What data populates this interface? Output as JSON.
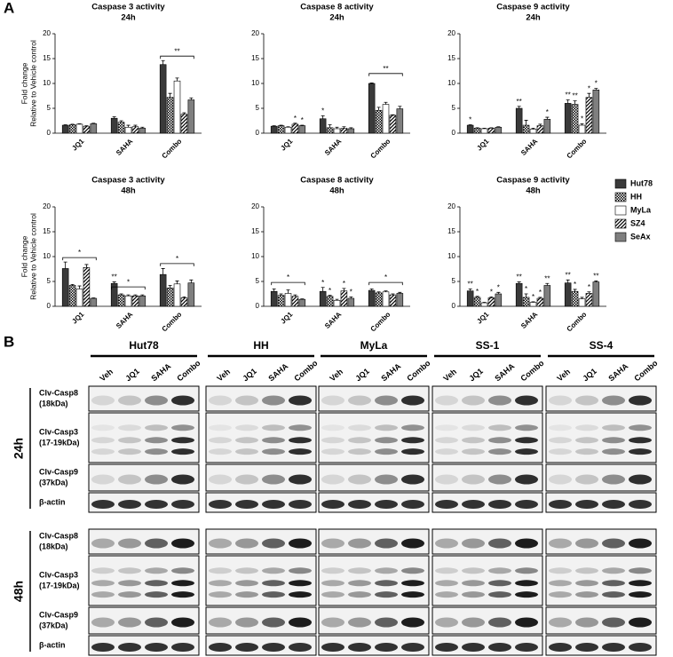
{
  "panel_labels": [
    "A",
    "B"
  ],
  "chart_data": [
    {
      "type": "bar",
      "title": "Caspase 3 activity",
      "subtitle": "24h",
      "ylabel": "Fold change",
      "ylabel2": "Relative to Vehicle control",
      "categories": [
        "JQ1",
        "SAHA",
        "Combo"
      ],
      "ylim": [
        0,
        20
      ],
      "yticks": [
        0,
        5,
        10,
        15,
        20
      ],
      "legend": "right",
      "series": [
        {
          "name": "Hut78",
          "color": "#3a3a3a",
          "values": [
            1.6,
            3.0,
            13.8
          ],
          "errors": [
            0.1,
            0.3,
            0.8
          ]
        },
        {
          "name": "HH",
          "color": "#000000",
          "pattern": "checker",
          "values": [
            1.7,
            2.2,
            7.2
          ],
          "errors": [
            0.1,
            0.3,
            0.8
          ]
        },
        {
          "name": "MyLa",
          "color": "#ffffff",
          "values": [
            1.8,
            1.2,
            10.5
          ],
          "errors": [
            0.1,
            0.4,
            0.6
          ]
        },
        {
          "name": "SZ4",
          "color": "#000000",
          "pattern": "stripes",
          "values": [
            1.4,
            1.3,
            3.8
          ],
          "errors": [
            0.1,
            0.3,
            0.3
          ]
        },
        {
          "name": "SeAx",
          "color": "#7f7f7f",
          "values": [
            1.9,
            1.0,
            6.7
          ],
          "errors": [
            0.1,
            0.2,
            0.4
          ]
        }
      ],
      "brackets": [
        {
          "category": 2,
          "label": "**",
          "y": 15.5
        }
      ]
    },
    {
      "type": "bar",
      "title": "Caspase 8 activity",
      "subtitle": "24h",
      "categories": [
        "JQ1",
        "SAHA",
        "Combo"
      ],
      "ylim": [
        0,
        20
      ],
      "yticks": [
        0,
        5,
        10,
        15,
        20
      ],
      "series": [
        {
          "name": "Hut78",
          "color": "#3a3a3a",
          "values": [
            1.4,
            2.9,
            10.0
          ],
          "errors": [
            0.1,
            0.6,
            0.1
          ],
          "stars": [
            null,
            "*",
            null
          ]
        },
        {
          "name": "HH",
          "color": "#000000",
          "pattern": "checker",
          "values": [
            1.5,
            1.1,
            4.6
          ],
          "errors": [
            0.1,
            0.6,
            0.6
          ]
        },
        {
          "name": "MyLa",
          "color": "#ffffff",
          "values": [
            1.2,
            0.9,
            5.8
          ],
          "errors": [
            0.1,
            0.3,
            0.4
          ]
        },
        {
          "name": "SZ4",
          "color": "#000000",
          "pattern": "stripes",
          "values": [
            1.8,
            1.0,
            3.6
          ],
          "errors": [
            0.2,
            0.3,
            0.1
          ],
          "stars": [
            "*",
            null,
            null
          ]
        },
        {
          "name": "SeAx",
          "color": "#7f7f7f",
          "values": [
            1.5,
            0.9,
            4.9
          ],
          "errors": [
            0.1,
            0.2,
            0.5
          ],
          "stars": [
            "*",
            null,
            null
          ]
        }
      ],
      "brackets": [
        {
          "category": 2,
          "label": "**",
          "y": 12
        }
      ]
    },
    {
      "type": "bar",
      "title": "Caspase 9 activity",
      "subtitle": "24h",
      "categories": [
        "JQ1",
        "SAHA",
        "Combo"
      ],
      "ylim": [
        0,
        20
      ],
      "yticks": [
        0,
        5,
        10,
        15,
        20
      ],
      "series": [
        {
          "name": "Hut78",
          "color": "#3a3a3a",
          "values": [
            1.6,
            5.0,
            6.0
          ],
          "errors": [
            0.1,
            0.4,
            0.7
          ],
          "stars": [
            "*",
            "**",
            "**"
          ]
        },
        {
          "name": "HH",
          "color": "#000000",
          "pattern": "checker",
          "values": [
            1.0,
            1.6,
            5.8
          ],
          "errors": [
            0.1,
            1.0,
            0.7
          ],
          "stars": [
            null,
            null,
            "**"
          ]
        },
        {
          "name": "MyLa",
          "color": "#ffffff",
          "values": [
            0.9,
            0.8,
            1.6
          ],
          "errors": [
            0.1,
            0.2,
            0.3
          ],
          "stars": [
            null,
            null,
            "*"
          ]
        },
        {
          "name": "SZ4",
          "color": "#000000",
          "pattern": "stripes",
          "values": [
            1.0,
            1.5,
            7.2
          ],
          "errors": [
            0.1,
            0.3,
            0.8
          ],
          "stars": [
            null,
            null,
            "*"
          ]
        },
        {
          "name": "SeAx",
          "color": "#7f7f7f",
          "values": [
            1.2,
            2.8,
            8.7
          ],
          "errors": [
            0.1,
            0.4,
            0.3
          ],
          "stars": [
            null,
            "*",
            "*"
          ]
        }
      ]
    },
    {
      "type": "bar",
      "title": "Caspase 3 activity",
      "subtitle": "48h",
      "ylabel": "Fold change",
      "ylabel2": "Relative to Vehicle control",
      "categories": [
        "JQ1",
        "SAHA",
        "Combo"
      ],
      "ylim": [
        0,
        20
      ],
      "yticks": [
        0,
        5,
        10,
        15,
        20
      ],
      "series": [
        {
          "name": "Hut78",
          "color": "#3a3a3a",
          "values": [
            7.6,
            4.6,
            6.4
          ],
          "errors": [
            1.3,
            0.3,
            1.2
          ],
          "stars": [
            null,
            "**",
            null
          ]
        },
        {
          "name": "HH",
          "color": "#000000",
          "pattern": "checker",
          "values": [
            4.2,
            2.3,
            3.7
          ],
          "errors": [
            0.2,
            0.2,
            0.5
          ]
        },
        {
          "name": "MyLa",
          "color": "#ffffff",
          "values": [
            3.5,
            2.1,
            4.5
          ],
          "errors": [
            0.6,
            0.2,
            0.6
          ]
        },
        {
          "name": "SZ4",
          "color": "#000000",
          "pattern": "stripes",
          "values": [
            7.8,
            2.1,
            1.7
          ],
          "errors": [
            0.6,
            0.2,
            0.2
          ]
        },
        {
          "name": "SeAx",
          "color": "#7f7f7f",
          "values": [
            1.6,
            2.1,
            4.7
          ],
          "errors": [
            0.1,
            0.2,
            0.6
          ]
        }
      ],
      "brackets": [
        {
          "category": 0,
          "label": "*",
          "y": 9.8
        },
        {
          "category": 1,
          "label": "*",
          "y": 3.9
        },
        {
          "category": 2,
          "label": "*",
          "y": 8.6
        }
      ]
    },
    {
      "type": "bar",
      "title": "Caspase 8 activity",
      "subtitle": "48h",
      "categories": [
        "JQ1",
        "SAHA",
        "Combo"
      ],
      "ylim": [
        0,
        20
      ],
      "yticks": [
        0,
        5,
        10,
        15,
        20
      ],
      "series": [
        {
          "name": "Hut78",
          "color": "#3a3a3a",
          "values": [
            3.0,
            3.0,
            3.2
          ],
          "errors": [
            0.5,
            0.8,
            0.3
          ],
          "stars": [
            null,
            "*",
            null
          ]
        },
        {
          "name": "HH",
          "color": "#000000",
          "pattern": "checker",
          "values": [
            2.2,
            2.0,
            2.7
          ],
          "errors": [
            0.3,
            0.2,
            0.2
          ],
          "stars": [
            null,
            "*",
            null
          ]
        },
        {
          "name": "MyLa",
          "color": "#ffffff",
          "values": [
            2.6,
            1.2,
            2.9
          ],
          "errors": [
            0.7,
            0.2,
            0.2
          ]
        },
        {
          "name": "SZ4",
          "color": "#000000",
          "pattern": "stripes",
          "values": [
            2.0,
            3.1,
            2.3
          ],
          "errors": [
            0.3,
            0.5,
            0.2
          ],
          "stars": [
            null,
            "*",
            null
          ]
        },
        {
          "name": "SeAx",
          "color": "#7f7f7f",
          "values": [
            1.4,
            1.6,
            2.6
          ],
          "errors": [
            0.1,
            0.3,
            0.2
          ],
          "stars": [
            null,
            "*",
            null
          ]
        }
      ],
      "brackets": [
        {
          "category": 0,
          "label": "*",
          "y": 4.8
        },
        {
          "category": 2,
          "label": "*",
          "y": 4.8
        }
      ]
    },
    {
      "type": "bar",
      "title": "Caspase 9 activity",
      "subtitle": "48h",
      "categories": [
        "JQ1",
        "SAHA",
        "Combo"
      ],
      "ylim": [
        0,
        20
      ],
      "yticks": [
        0,
        5,
        10,
        15,
        20
      ],
      "series": [
        {
          "name": "Hut78",
          "color": "#3a3a3a",
          "values": [
            3.1,
            4.6,
            4.7
          ],
          "errors": [
            0.4,
            0.3,
            0.6
          ],
          "stars": [
            "**",
            "**",
            "**"
          ]
        },
        {
          "name": "HH",
          "color": "#000000",
          "pattern": "checker",
          "values": [
            1.8,
            1.8,
            3.0
          ],
          "errors": [
            0.2,
            0.7,
            0.4
          ],
          "stars": [
            "*",
            "*",
            "*"
          ]
        },
        {
          "name": "MyLa",
          "color": "#ffffff",
          "values": [
            0.7,
            0.8,
            1.5
          ],
          "errors": [
            0.1,
            0.1,
            0.3
          ],
          "stars": [
            null,
            "*",
            null
          ]
        },
        {
          "name": "SZ4",
          "color": "#000000",
          "pattern": "stripes",
          "values": [
            1.7,
            1.6,
            2.6
          ],
          "errors": [
            0.2,
            0.2,
            0.3
          ],
          "stars": [
            "*",
            "*",
            "*"
          ]
        },
        {
          "name": "SeAx",
          "color": "#7f7f7f",
          "values": [
            2.5,
            4.2,
            4.9
          ],
          "errors": [
            0.3,
            0.4,
            0.2
          ],
          "stars": [
            "*",
            "**",
            "**"
          ]
        }
      ]
    }
  ],
  "panel_b": {
    "cell_lines": [
      "Hut78",
      "HH",
      "MyLa",
      "SS-1",
      "SS-4"
    ],
    "lanes": [
      "Veh",
      "JQ1",
      "SAHA",
      "Combo"
    ],
    "timepoints": [
      "24h",
      "48h"
    ],
    "rows": [
      {
        "name": "Clv-Casp8",
        "size": "(18kDa)"
      },
      {
        "name": "Clv-Casp3",
        "size": "(17-19kDa)"
      },
      {
        "name": "Clv-Casp9",
        "size": "(37kDa)"
      },
      {
        "name": "β-actin"
      }
    ]
  }
}
